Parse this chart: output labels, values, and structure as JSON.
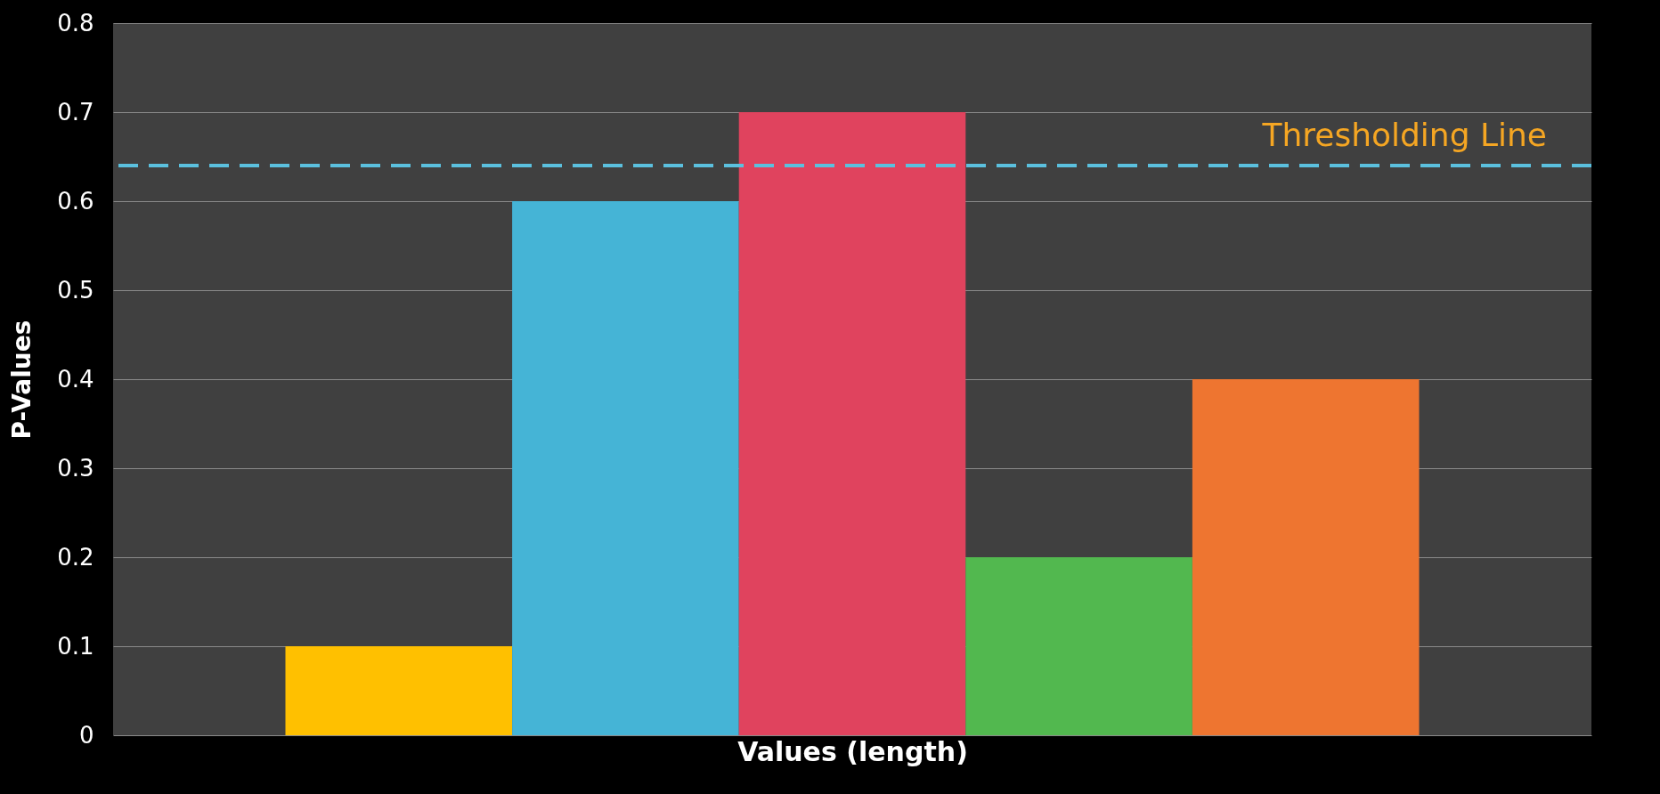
{
  "chart_data": {
    "type": "bar",
    "xlabel": "Values (length)",
    "ylabel": "P-Values",
    "categories": [
      null,
      null,
      null,
      null,
      null
    ],
    "values": [
      0.1,
      0.6,
      0.7,
      0.2,
      0.4
    ],
    "colors": [
      "#ffc000",
      "#45b4d6",
      "#e0435e",
      "#52b84f",
      "#ee7530"
    ],
    "ylim": [
      0,
      0.8
    ],
    "yticks": [
      0,
      0.1,
      0.2,
      0.3,
      0.4,
      0.5,
      0.6,
      0.7,
      0.8
    ],
    "grid": "y",
    "legend": false,
    "ref_lines": [
      {
        "axis": "y",
        "value": 0.64,
        "label": "Thresholding Line",
        "color": "#5bc0de",
        "line_style": "dashed"
      }
    ]
  }
}
